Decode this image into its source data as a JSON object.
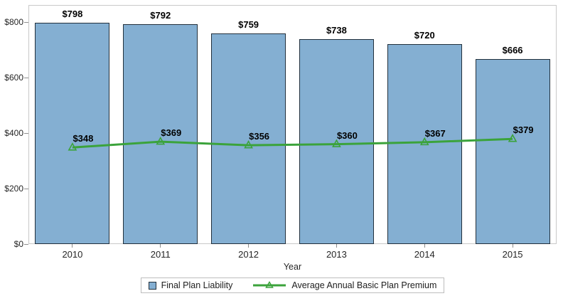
{
  "chart_data": {
    "type": "bar-line-combo",
    "title": "",
    "xlabel": "Year",
    "ylabel": "",
    "categories": [
      "2010",
      "2011",
      "2012",
      "2013",
      "2014",
      "2015"
    ],
    "series": [
      {
        "name": "Final Plan Liability",
        "type": "bar",
        "values": [
          798,
          792,
          759,
          738,
          720,
          666
        ],
        "labels": [
          "$798",
          "$792",
          "$759",
          "$738",
          "$720",
          "$666"
        ],
        "fill_color": "#84afd2",
        "border_color": "#22303c",
        "marker": "square-swatch"
      },
      {
        "name": "Average Annual Basic Plan Premium",
        "type": "line",
        "values": [
          348,
          369,
          356,
          360,
          367,
          379
        ],
        "labels": [
          "$348",
          "$369",
          "$356",
          "$360",
          "$367",
          "$379"
        ],
        "color": "#3ba33b",
        "marker": "open-triangle"
      }
    ],
    "ylim": [
      0,
      800
    ],
    "y_ticks": [
      {
        "value": 0,
        "label": "$0"
      },
      {
        "value": 200,
        "label": "$200"
      },
      {
        "value": 400,
        "label": "$400"
      },
      {
        "value": 600,
        "label": "$600"
      },
      {
        "value": 800,
        "label": "$800"
      }
    ],
    "grid": "off",
    "legend_position": "bottom-center",
    "frame_color": "#c9c9c9",
    "tick_color": "#8e8e8e"
  }
}
